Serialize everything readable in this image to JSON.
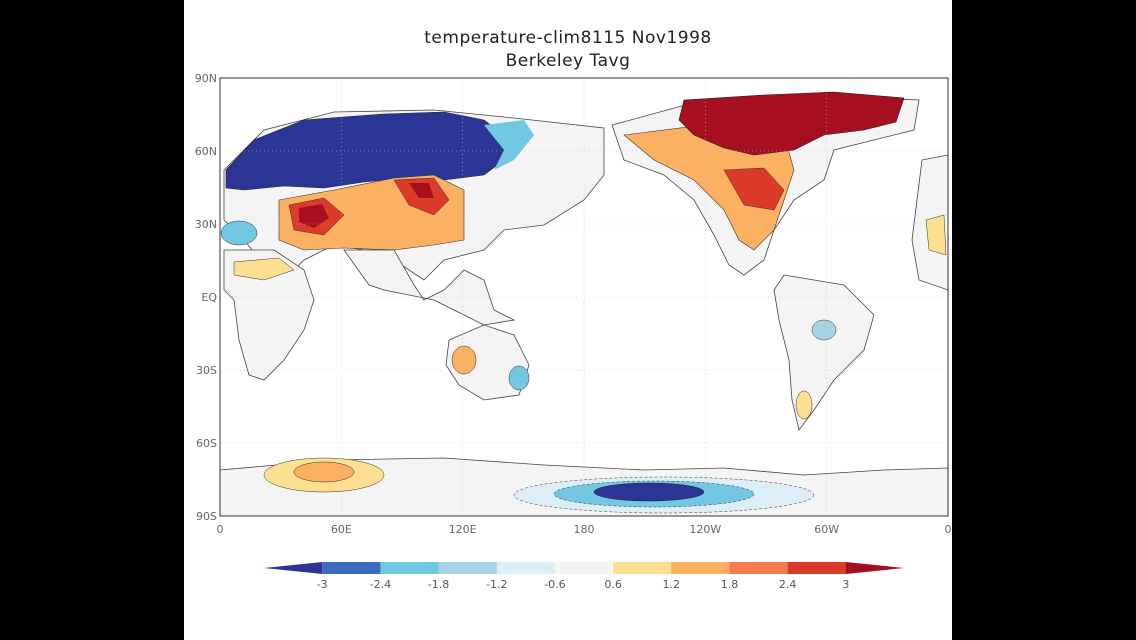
{
  "title": "temperature-clim8115  Nov1998",
  "subtitle": "Berkeley Tavg",
  "map": {
    "lat_labels": [
      "90N",
      "60N",
      "30N",
      "EQ",
      "30S",
      "60S",
      "90S"
    ],
    "lon_labels": [
      "0",
      "60E",
      "120E",
      "180",
      "120W",
      "60W",
      "0"
    ],
    "projection": "cylindrical equidistant, centered 180",
    "grid": "dotted"
  },
  "colorbar": {
    "levels": [
      "-3",
      "-2.4",
      "-1.8",
      "-1.2",
      "-0.6",
      "0.6",
      "1.2",
      "1.8",
      "2.4",
      "3"
    ],
    "colors": [
      "#2b3595",
      "#3d6bc0",
      "#72c7e3",
      "#a6d4e6",
      "#ddeef6",
      "#f4f4f4",
      "#fcdf90",
      "#fbb062",
      "#f47e52",
      "#dd3b2a",
      "#a50f1f"
    ]
  },
  "colors": {
    "cold_strong": "#2b3595",
    "cold": "#72c7e3",
    "warm": "#fbb062",
    "warm_strong": "#a50f1f",
    "land_neutral": "#f4f4f4"
  }
}
